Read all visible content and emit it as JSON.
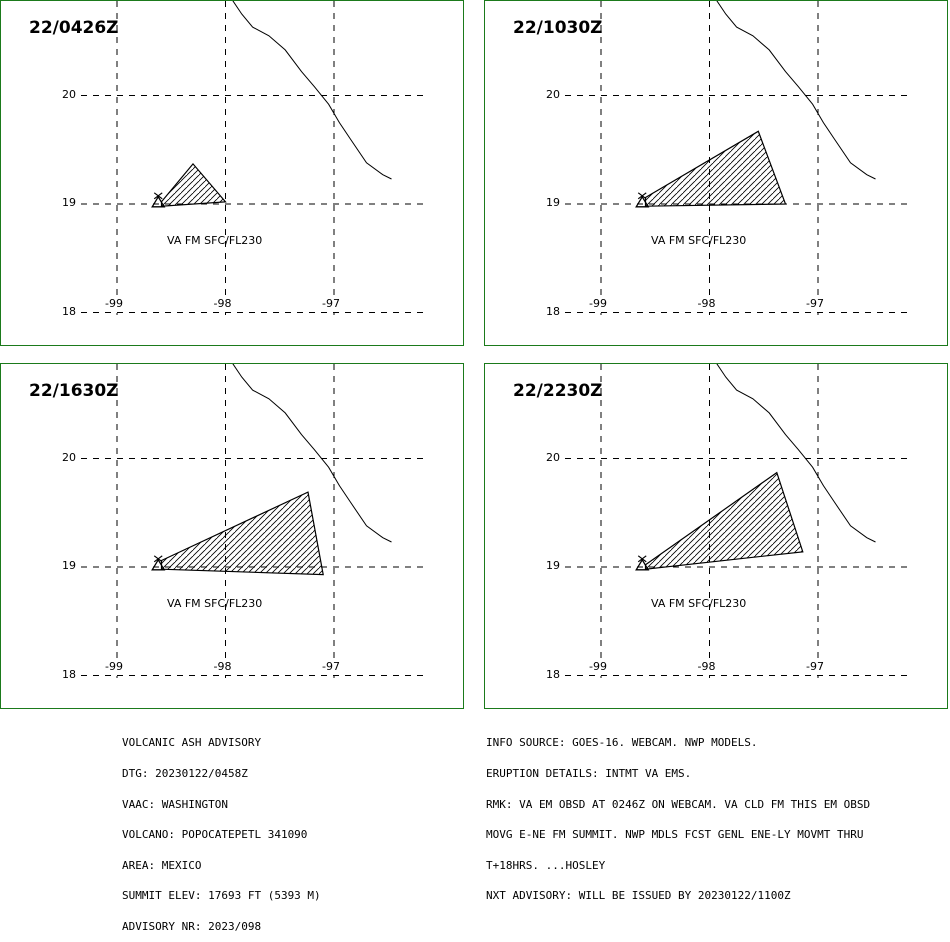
{
  "panels": [
    {
      "time": "22/0426Z",
      "va_label": "VA FM SFC/FL230",
      "ash_polygon": [
        [
          -98.59,
          19.02
        ],
        [
          -98.3,
          19.37
        ],
        [
          -98.0,
          19.02
        ],
        [
          -98.59,
          18.98
        ]
      ]
    },
    {
      "time": "22/1030Z",
      "va_label": "VA FM SFC/FL230",
      "ash_polygon": [
        [
          -98.59,
          19.06
        ],
        [
          -97.55,
          19.67
        ],
        [
          -97.3,
          19.0
        ],
        [
          -98.59,
          18.98
        ]
      ]
    },
    {
      "time": "22/1630Z",
      "va_label": "VA FM SFC/FL230",
      "ash_polygon": [
        [
          -98.59,
          19.06
        ],
        [
          -97.24,
          19.69
        ],
        [
          -97.1,
          18.93
        ],
        [
          -98.59,
          18.98
        ]
      ]
    },
    {
      "time": "22/2230Z",
      "va_label": "VA FM SFC/FL230",
      "ash_polygon": [
        [
          -98.59,
          19.02
        ],
        [
          -97.38,
          19.87
        ],
        [
          -97.14,
          19.14
        ],
        [
          -98.59,
          18.98
        ]
      ]
    }
  ],
  "map": {
    "lon_ticks": [
      "-99",
      "-98",
      "-97"
    ],
    "lat_ticks": [
      "20",
      "19",
      "18"
    ],
    "volcano": [
      -98.62,
      19.02
    ],
    "coastline": [
      [
        -97.95,
        20.9
      ],
      [
        -97.85,
        20.75
      ],
      [
        -97.75,
        20.63
      ],
      [
        -97.6,
        20.55
      ],
      [
        -97.45,
        20.42
      ],
      [
        -97.3,
        20.22
      ],
      [
        -97.18,
        20.08
      ],
      [
        -97.05,
        19.92
      ],
      [
        -96.95,
        19.75
      ],
      [
        -96.85,
        19.6
      ],
      [
        -96.7,
        19.38
      ],
      [
        -96.55,
        19.27
      ],
      [
        -96.47,
        19.23
      ]
    ],
    "colors": {
      "frame": "#1b7a1b",
      "line": "#000000"
    }
  },
  "advisory_left": [
    "VOLCANIC ASH ADVISORY",
    "DTG: 20230122/0458Z",
    "VAAC: WASHINGTON",
    "VOLCANO: POPOCATEPETL 341090",
    "AREA: MEXICO",
    "SUMMIT ELEV: 17693 FT (5393 M)",
    "ADVISORY NR: 2023/098"
  ],
  "advisory_right": [
    "INFO SOURCE: GOES-16. WEBCAM. NWP MODELS.",
    "ERUPTION DETAILS: INTMT VA EMS.",
    "RMK: VA EM OBSD AT 0246Z ON WEBCAM. VA CLD FM THIS EM OBSD",
    "MOVG E-NE FM SUMMIT. NWP MDLS FCST GENL ENE-LY MOVMT THRU",
    "T+18HRS. ...HOSLEY",
    "NXT ADVISORY: WILL BE ISSUED BY 20230122/1100Z"
  ]
}
